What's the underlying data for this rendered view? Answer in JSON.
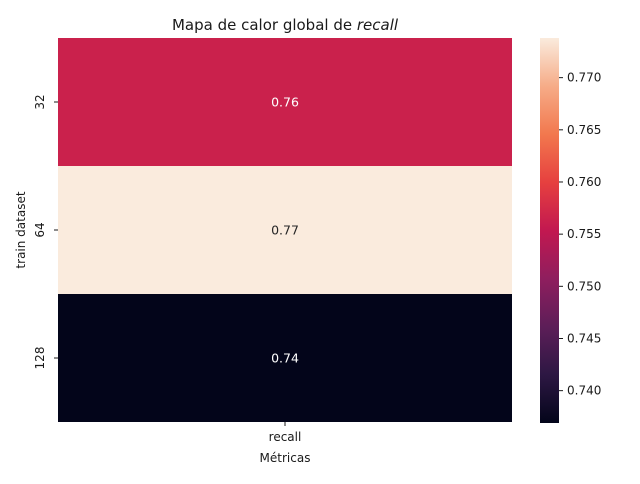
{
  "chart_data": {
    "type": "heatmap",
    "title_prefix": "Mapa de calor global de ",
    "title_emph": "recall",
    "xlabel": "Métricas",
    "ylabel": "train dataset",
    "x_categories": [
      "recall"
    ],
    "y_categories": [
      "32",
      "64",
      "128"
    ],
    "values": [
      [
        0.7564
      ],
      [
        0.7738
      ],
      [
        0.7369
      ]
    ],
    "value_labels": [
      "0.76",
      "0.77",
      "0.74"
    ],
    "colorbar": {
      "min": 0.7369,
      "max": 0.7738,
      "ticks": [
        "0.740",
        "0.745",
        "0.750",
        "0.755",
        "0.760",
        "0.765",
        "0.770"
      ],
      "colormap": "rocket"
    },
    "cell_text_colors": [
      "#ffffff",
      "#262626",
      "#ffffff"
    ]
  }
}
